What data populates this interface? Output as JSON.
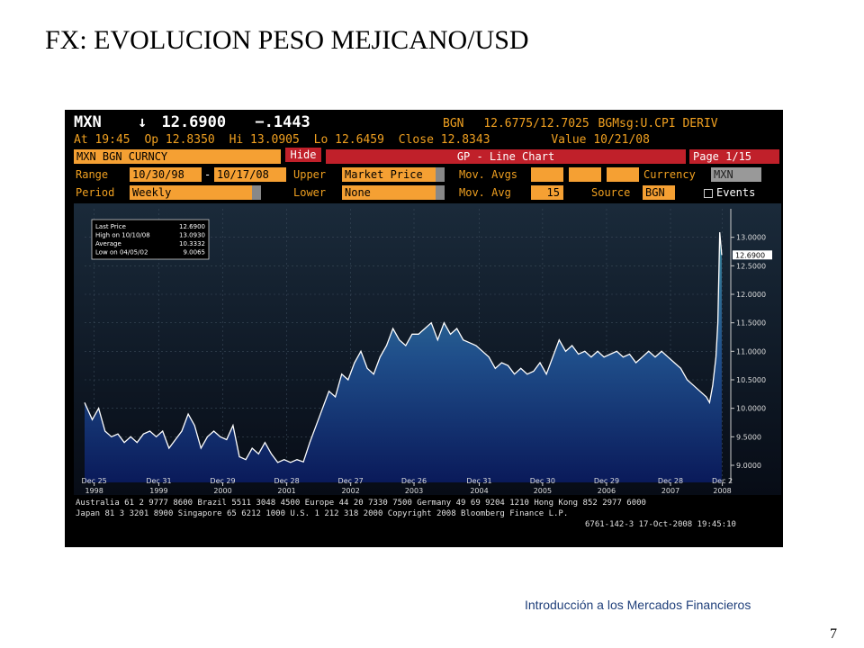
{
  "slide": {
    "title": "FX: EVOLUCION PESO MEJICANO/USD",
    "footer": "Introducción a los Mercados Financieros",
    "page_number": "7"
  },
  "terminal": {
    "header1": {
      "ticker": "MXN",
      "arrow": "↓",
      "price": "12.6900",
      "change": "−.1443",
      "source": "BGN",
      "bid_ask": "12.6775/12.7025",
      "msg": "BGMsg:U.CPI DERIV"
    },
    "header2": {
      "at": "At 19:45",
      "op": "Op 12.8350",
      "hi": "Hi 13.0905",
      "lo": "Lo 12.6459",
      "close": "Close 12.8343",
      "value": "Value  10/21/08"
    },
    "toolbar": {
      "security": "MXN BGN CURNCY",
      "hide": "Hide",
      "chart_title": "GP - Line Chart",
      "page": "Page 1/15"
    },
    "params": {
      "range_label": "Range",
      "range_start": "10/30/98",
      "range_dash": "-",
      "range_end": "10/17/08",
      "upper_label": "Upper",
      "upper_value": "Market Price",
      "movavgs_label": "Mov. Avgs",
      "currency_label": "Currency",
      "currency_value": "MXN",
      "period_label": "Period",
      "period_value": "Weekly",
      "lower_label": "Lower",
      "lower_value": "None",
      "movavg_label": "Mov. Avg",
      "movavg_value": "15",
      "source_label": "Source",
      "source_value": "BGN",
      "events_label": "Events"
    },
    "footer_lines": [
      "Australia 61 2 9777 8600 Brazil 5511 3048 4500 Europe 44 20 7330 7500 Germany 49 69 9204 1210 Hong Kong 852 2977 6000",
      "Japan 81 3 3201 8900        Singapore 65 6212 1000       U.S. 1 212 318 2000       Copyright 2008 Bloomberg Finance L.P.",
      "6761-142-3 17-Oct-2008 19:45:10"
    ]
  },
  "chart_data": {
    "type": "area",
    "title": "",
    "xlabel": "",
    "ylabel": "",
    "x_range": [
      1998.98,
      2008.8
    ],
    "ylim": [
      8.7,
      13.5
    ],
    "yticks": [
      "13.0000",
      "12.5000",
      "12.0000",
      "11.5000",
      "11.0000",
      "10.5000",
      "10.0000",
      "9.5000",
      "9.0000"
    ],
    "ytick_values": [
      13.0,
      12.5,
      12.0,
      11.5,
      11.0,
      10.5,
      10.0,
      9.5,
      9.0
    ],
    "last_price_tag": "12.6900",
    "last_price_value": 12.69,
    "xticks": [
      {
        "x": 1998.98,
        "top": "Dec 25",
        "bottom": "1998"
      },
      {
        "x": 1999.99,
        "top": "Dec 31",
        "bottom": "1999"
      },
      {
        "x": 2000.99,
        "top": "Dec 29",
        "bottom": "2000"
      },
      {
        "x": 2001.99,
        "top": "Dec 28",
        "bottom": "2001"
      },
      {
        "x": 2002.99,
        "top": "Dec 27",
        "bottom": "2002"
      },
      {
        "x": 2003.98,
        "top": "Dec 26",
        "bottom": "2003"
      },
      {
        "x": 2005.0,
        "top": "Dec 31",
        "bottom": "2004"
      },
      {
        "x": 2005.99,
        "top": "Dec 30",
        "bottom": "2005"
      },
      {
        "x": 2006.99,
        "top": "Dec 29",
        "bottom": "2006"
      },
      {
        "x": 2007.99,
        "top": "Dec 28",
        "bottom": "2007"
      },
      {
        "x": 2008.8,
        "top": "Dec 2",
        "bottom": "2008"
      }
    ],
    "legend": [
      {
        "label": "Last Price",
        "value": "12.6900"
      },
      {
        "label": "High on 10/10/08",
        "value": "13.0930"
      },
      {
        "label": "Average",
        "value": "10.3332"
      },
      {
        "label": "Low on 04/05/02",
        "value": "9.0065"
      }
    ],
    "legend_placement": "top-left",
    "grid": true,
    "series": [
      {
        "x": [
          1998.83,
          1998.95,
          1999.05,
          1999.15,
          1999.25,
          1999.35,
          1999.45,
          1999.55,
          1999.65,
          1999.75,
          1999.85,
          1999.95,
          2000.05,
          2000.15,
          2000.25,
          2000.35,
          2000.45,
          2000.55,
          2000.65,
          2000.75,
          2000.85,
          2000.95,
          2001.05,
          2001.15,
          2001.25,
          2001.35,
          2001.45,
          2001.55,
          2001.65,
          2001.75,
          2001.85,
          2001.95,
          2002.05,
          2002.15,
          2002.25,
          2002.35,
          2002.45,
          2002.55,
          2002.65,
          2002.75,
          2002.85,
          2002.95,
          2003.05,
          2003.15,
          2003.25,
          2003.35,
          2003.45,
          2003.55,
          2003.65,
          2003.75,
          2003.85,
          2003.95,
          2004.05,
          2004.15,
          2004.25,
          2004.35,
          2004.45,
          2004.55,
          2004.65,
          2004.75,
          2004.85,
          2004.95,
          2005.05,
          2005.15,
          2005.25,
          2005.35,
          2005.45,
          2005.55,
          2005.65,
          2005.75,
          2005.85,
          2005.95,
          2006.05,
          2006.15,
          2006.25,
          2006.35,
          2006.45,
          2006.55,
          2006.65,
          2006.75,
          2006.85,
          2006.95,
          2007.05,
          2007.15,
          2007.25,
          2007.35,
          2007.45,
          2007.55,
          2007.65,
          2007.75,
          2007.85,
          2007.95,
          2008.05,
          2008.15,
          2008.25,
          2008.35,
          2008.45,
          2008.55,
          2008.6,
          2008.65,
          2008.7,
          2008.73,
          2008.76,
          2008.79
        ],
        "y": [
          10.1,
          9.8,
          10.0,
          9.6,
          9.5,
          9.55,
          9.4,
          9.5,
          9.4,
          9.55,
          9.6,
          9.5,
          9.6,
          9.3,
          9.45,
          9.6,
          9.9,
          9.7,
          9.3,
          9.5,
          9.6,
          9.5,
          9.45,
          9.7,
          9.15,
          9.1,
          9.3,
          9.2,
          9.4,
          9.2,
          9.05,
          9.1,
          9.05,
          9.1,
          9.06,
          9.4,
          9.7,
          10.0,
          10.3,
          10.2,
          10.6,
          10.5,
          10.8,
          11.0,
          10.7,
          10.6,
          10.9,
          11.1,
          11.4,
          11.2,
          11.1,
          11.3,
          11.3,
          11.4,
          11.5,
          11.2,
          11.5,
          11.3,
          11.4,
          11.2,
          11.15,
          11.1,
          11.0,
          10.9,
          10.7,
          10.8,
          10.75,
          10.6,
          10.7,
          10.6,
          10.65,
          10.8,
          10.6,
          10.9,
          11.2,
          11.0,
          11.1,
          10.95,
          11.0,
          10.9,
          11.0,
          10.9,
          10.95,
          11.0,
          10.9,
          10.95,
          10.8,
          10.9,
          11.0,
          10.9,
          11.0,
          10.9,
          10.8,
          10.7,
          10.5,
          10.4,
          10.3,
          10.2,
          10.1,
          10.4,
          10.9,
          11.5,
          13.09,
          12.69
        ]
      }
    ]
  }
}
